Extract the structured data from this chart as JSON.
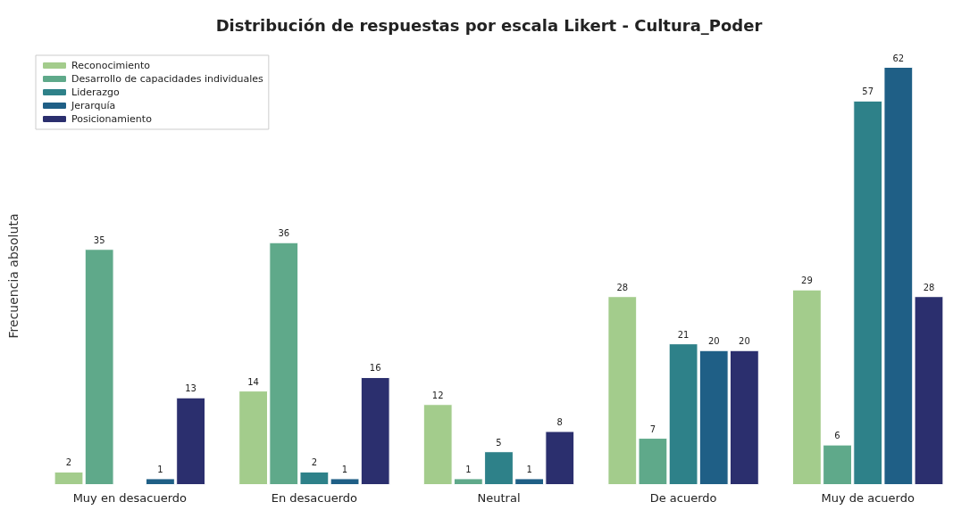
{
  "chart_data": {
    "type": "bar",
    "title": "Distribución de respuestas por escala Likert - Cultura_Poder",
    "ylabel": "Frecuencia absoluta",
    "categories": [
      "Muy en desacuerdo",
      "En desacuerdo",
      "Neutral",
      "De acuerdo",
      "Muy de acuerdo"
    ],
    "series": [
      {
        "name": "Reconocimiento",
        "color": "#a3cc8c",
        "values": [
          2,
          14,
          12,
          28,
          29
        ],
        "value_labels": [
          "2",
          "14",
          "12",
          "28",
          "29"
        ]
      },
      {
        "name": "Desarrollo de capacidades individuales",
        "color": "#5fa98a",
        "values": [
          35,
          36,
          1,
          7,
          6
        ],
        "value_labels": [
          "35",
          "36",
          "1",
          "7",
          "6"
        ]
      },
      {
        "name": "Liderazgo",
        "color": "#2e8189",
        "values": [
          null,
          2,
          5,
          21,
          57
        ],
        "value_labels": [
          null,
          "2",
          "5",
          "21",
          "57"
        ]
      },
      {
        "name": "Jerarquía",
        "color": "#1f5f86",
        "values": [
          1,
          1,
          1,
          20,
          62
        ],
        "value_labels": [
          "1",
          "1",
          "1",
          "20",
          "62"
        ]
      },
      {
        "name": "Posicionamiento",
        "color": "#2b2f6e",
        "values": [
          13,
          16,
          8,
          20,
          28
        ],
        "value_labels": [
          "13",
          "16",
          "8",
          "20",
          "28"
        ]
      }
    ],
    "tick_labels": "x",
    "grid": false,
    "legend": "top left"
  }
}
